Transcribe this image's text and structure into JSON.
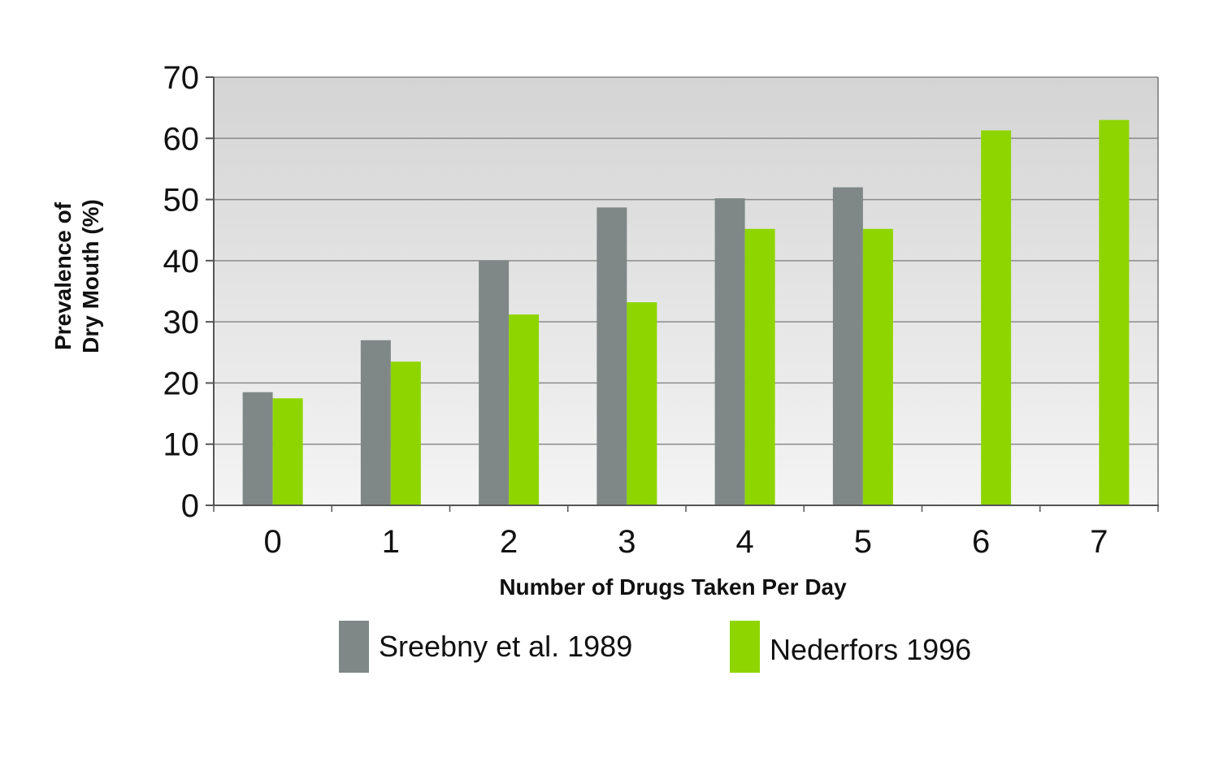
{
  "chart_data": {
    "type": "bar",
    "title": "",
    "xlabel": "Number of Drugs Taken Per Day",
    "ylabel_lines": [
      "Prevalence of",
      "Dry Mouth (%)"
    ],
    "categories": [
      "0",
      "1",
      "2",
      "3",
      "4",
      "5",
      "6",
      "7"
    ],
    "ylim": [
      0,
      70
    ],
    "yticks": [
      0,
      10,
      20,
      30,
      40,
      50,
      60,
      70
    ],
    "grid": true,
    "legend_position": "bottom",
    "series": [
      {
        "name": "Sreebny et al. 1989",
        "color": "#7f8886",
        "values": [
          18.5,
          27,
          40,
          48.7,
          50.2,
          52,
          null,
          null
        ]
      },
      {
        "name": "Nederfors 1996",
        "color": "#8ed500",
        "values": [
          17.5,
          23.5,
          31.2,
          33.2,
          45.2,
          45.2,
          61.3,
          63
        ]
      }
    ]
  }
}
